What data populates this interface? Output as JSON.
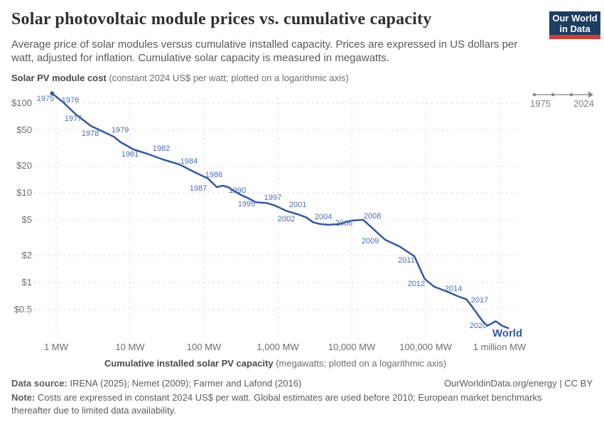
{
  "header": {
    "title": "Solar photovoltaic module prices vs. cumulative capacity",
    "subtitle": "Average price of solar modules versus cumulative installed capacity. Prices are expressed in US dollars per watt, adjusted for inflation. Cumulative solar capacity is measured in megawatts.",
    "logo": {
      "line1": "Our World",
      "line2": "in Data"
    }
  },
  "timeline": {
    "start": "1975",
    "end": "2024"
  },
  "y_axis_title": {
    "bold": "Solar PV module cost",
    "rest": " (constant 2024 US$ per watt; plotted on a logarithmic axis)"
  },
  "x_axis_title": {
    "bold": "Cumulative installed solar PV capacity",
    "rest": " (megawatts; plotted on a logarithmic axis)"
  },
  "footer": {
    "source_bold": "Data source:",
    "source_rest": " IRENA (2025); Nemet (2009); Farmer and Lafond (2016)",
    "rights": "OurWorldinData.org/energy | CC BY",
    "note_bold": "Note:",
    "note_rest": " Costs are expressed in constant 2024 US$ per watt. Global estimates are used before 2010; European market benchmarks thereafter due to limited data availability."
  },
  "chart_data": {
    "type": "line",
    "title": "Solar photovoltaic module prices vs. cumulative capacity",
    "xlabel": "Cumulative installed solar PV capacity (megawatts; logarithmic axis)",
    "ylabel": "Solar PV module cost (constant 2024 US$ per watt; logarithmic axis)",
    "x_scale": "log",
    "y_scale": "log",
    "xlim": [
      0.49,
      1740000
    ],
    "ylim": [
      0.24,
      136
    ],
    "grid": true,
    "x_ticks": {
      "values": [
        1,
        10,
        100,
        1000,
        10000,
        100000,
        1000000
      ],
      "labels": [
        "1 MW",
        "10 MW",
        "100 MW",
        "1,000 MW",
        "10,000 MW",
        "100,000 MW",
        "1 million MW"
      ]
    },
    "y_ticks": {
      "values": [
        100,
        50,
        20,
        10,
        5,
        2,
        1,
        0.5
      ],
      "labels": [
        "$100",
        "$50",
        "$20",
        "$10",
        "$5",
        "$2",
        "$1",
        "$0.5"
      ]
    },
    "series": [
      {
        "name": "World",
        "color": "#35589f",
        "points_format": [
          "year",
          "cumulative_capacity_mw",
          "price_usd_per_watt"
        ],
        "points": [
          [
            1975,
            0.88,
            129
          ],
          [
            1976,
            1.22,
            104
          ],
          [
            1977,
            1.86,
            74.6
          ],
          [
            1978,
            2.96,
            55.7
          ],
          [
            1979,
            6.0,
            42.4
          ],
          [
            1980,
            7.5,
            36.6
          ],
          [
            1981,
            11.2,
            30.5
          ],
          [
            1982,
            17.0,
            27.3
          ],
          [
            1983,
            27.7,
            23.6
          ],
          [
            1984,
            46.2,
            20.8
          ],
          [
            1985,
            71.8,
            17.3
          ],
          [
            1986,
            114,
            14.4
          ],
          [
            1987,
            149,
            11.6
          ],
          [
            1988,
            178,
            12.0
          ],
          [
            1989,
            212,
            11.6
          ],
          [
            1990,
            265,
            10.3
          ],
          [
            1991,
            324,
            9.4
          ],
          [
            1992,
            378,
            8.9
          ],
          [
            1993,
            432,
            8.4
          ],
          [
            1994,
            495,
            7.9
          ],
          [
            1995,
            573,
            7.8
          ],
          [
            1996,
            705,
            7.7
          ],
          [
            1997,
            879,
            7.3
          ],
          [
            1998,
            1070,
            6.8
          ],
          [
            1999,
            1300,
            6.3
          ],
          [
            2000,
            1590,
            6.0
          ],
          [
            2001,
            1950,
            5.7
          ],
          [
            2002,
            2440,
            5.3
          ],
          [
            2003,
            2990,
            4.7
          ],
          [
            2004,
            3710,
            4.5
          ],
          [
            2005,
            4850,
            4.4
          ],
          [
            2006,
            6900,
            4.5
          ],
          [
            2007,
            9800,
            4.9
          ],
          [
            2008,
            14300,
            5.0
          ],
          [
            2009,
            28400,
            3.0
          ],
          [
            2010,
            45300,
            2.5
          ],
          [
            2011,
            70100,
            1.97
          ],
          [
            2012,
            97000,
            1.1
          ],
          [
            2013,
            130000,
            0.9
          ],
          [
            2014,
            162000,
            0.84
          ],
          [
            2015,
            212000,
            0.77
          ],
          [
            2016,
            277000,
            0.7
          ],
          [
            2017,
            356000,
            0.65
          ],
          [
            2018,
            424000,
            0.54
          ],
          [
            2019,
            507000,
            0.44
          ],
          [
            2020,
            590000,
            0.37
          ],
          [
            2021,
            687000,
            0.33
          ],
          [
            2022,
            890000,
            0.37
          ],
          [
            2023,
            1080000,
            0.33
          ],
          [
            2024,
            1310000,
            0.31
          ]
        ]
      }
    ],
    "labeled_years": [
      1975,
      1976,
      1977,
      1978,
      1979,
      1981,
      1982,
      1984,
      1986,
      1987,
      1990,
      1995,
      1997,
      2001,
      2002,
      2004,
      2006,
      2008,
      2009,
      2011,
      2012,
      2014,
      2017,
      2020
    ],
    "end_label": "World",
    "label_color": "#4d6eb0",
    "grid_color": "#dcdcdc"
  }
}
